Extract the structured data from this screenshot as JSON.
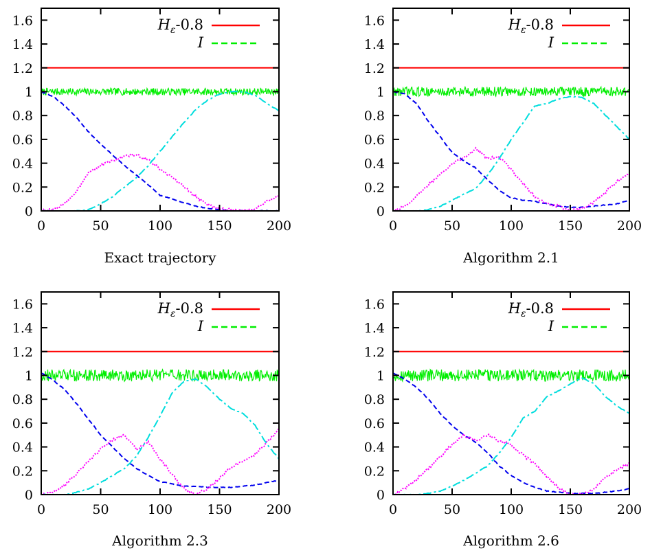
{
  "chart_data": [
    {
      "type": "line",
      "title": "Exact trajectory",
      "xlim": [
        0,
        200
      ],
      "ylim": [
        0,
        1.7
      ],
      "x_ticks": [
        0,
        50,
        100,
        150,
        200
      ],
      "y_ticks": [
        0,
        0.2,
        0.4,
        0.6,
        0.8,
        1,
        1.2,
        1.4,
        1.6
      ],
      "legend_position": "top-right",
      "series": [
        {
          "name": "Hε-0.8",
          "color": "#ff0000",
          "style": "solid",
          "x": [
            0,
            200
          ],
          "y": [
            1.2,
            1.2
          ]
        },
        {
          "name": "I",
          "color": "#00ee00",
          "style": "dashed-noisy",
          "amp": 0.03,
          "x": [
            0,
            200
          ],
          "y": [
            1.0,
            1.0
          ]
        },
        {
          "color": "#0000ee",
          "style": "dashed",
          "x": [
            0,
            10,
            20,
            30,
            40,
            50,
            60,
            70,
            80,
            90,
            100,
            110,
            120,
            130,
            140,
            150,
            160,
            170,
            180,
            190,
            200
          ],
          "y": [
            1.0,
            0.96,
            0.88,
            0.78,
            0.66,
            0.56,
            0.47,
            0.38,
            0.3,
            0.22,
            0.13,
            0.1,
            0.07,
            0.04,
            0.02,
            0.01,
            0.0,
            0.0,
            0.0,
            0.0,
            0.0
          ]
        },
        {
          "color": "#ff00ff",
          "style": "dotted",
          "x": [
            0,
            10,
            20,
            30,
            40,
            50,
            60,
            70,
            80,
            90,
            100,
            110,
            120,
            130,
            140,
            150,
            160,
            170,
            180,
            190,
            200
          ],
          "y": [
            0.0,
            0.01,
            0.06,
            0.17,
            0.33,
            0.38,
            0.42,
            0.46,
            0.47,
            0.43,
            0.35,
            0.28,
            0.2,
            0.12,
            0.05,
            0.02,
            0.01,
            0.0,
            0.02,
            0.08,
            0.13
          ]
        },
        {
          "color": "#00dddd",
          "style": "dashdot",
          "x": [
            0,
            10,
            20,
            30,
            40,
            50,
            60,
            70,
            80,
            90,
            100,
            110,
            120,
            130,
            140,
            150,
            160,
            170,
            180,
            190,
            200
          ],
          "y": [
            0.0,
            0.0,
            0.0,
            0.0,
            0.01,
            0.06,
            0.12,
            0.2,
            0.28,
            0.38,
            0.5,
            0.62,
            0.74,
            0.85,
            0.93,
            0.98,
            1.0,
            1.0,
            0.97,
            0.9,
            0.84
          ]
        }
      ]
    },
    {
      "type": "line",
      "title": "Algorithm 2.1",
      "xlim": [
        0,
        200
      ],
      "ylim": [
        0,
        1.7
      ],
      "x_ticks": [
        0,
        50,
        100,
        150,
        200
      ],
      "y_ticks": [
        0,
        0.2,
        0.4,
        0.6,
        0.8,
        1,
        1.2,
        1.4,
        1.6
      ],
      "legend_position": "top-right",
      "series": [
        {
          "name": "Hε-0.8",
          "color": "#ff0000",
          "style": "solid",
          "x": [
            0,
            200
          ],
          "y": [
            1.2,
            1.2
          ]
        },
        {
          "name": "I",
          "color": "#00ee00",
          "style": "dashed-noisy",
          "amp": 0.04,
          "x": [
            0,
            200
          ],
          "y": [
            1.0,
            1.0
          ]
        },
        {
          "color": "#0000ee",
          "style": "dashed",
          "x": [
            0,
            10,
            20,
            30,
            40,
            50,
            60,
            70,
            80,
            90,
            100,
            110,
            120,
            130,
            140,
            150,
            160,
            170,
            180,
            190,
            200
          ],
          "y": [
            1.0,
            0.98,
            0.9,
            0.75,
            0.62,
            0.49,
            0.42,
            0.36,
            0.26,
            0.17,
            0.11,
            0.09,
            0.08,
            0.06,
            0.04,
            0.03,
            0.03,
            0.04,
            0.05,
            0.06,
            0.09
          ]
        },
        {
          "color": "#ff00ff",
          "style": "dotted",
          "x": [
            0,
            10,
            20,
            30,
            40,
            50,
            60,
            70,
            80,
            90,
            100,
            110,
            120,
            130,
            140,
            150,
            160,
            170,
            180,
            190,
            200
          ],
          "y": [
            0.0,
            0.04,
            0.12,
            0.22,
            0.31,
            0.4,
            0.45,
            0.52,
            0.44,
            0.45,
            0.35,
            0.23,
            0.12,
            0.06,
            0.04,
            0.0,
            0.02,
            0.07,
            0.16,
            0.25,
            0.31
          ]
        },
        {
          "color": "#00dddd",
          "style": "dashdot",
          "x": [
            0,
            10,
            20,
            30,
            40,
            50,
            60,
            70,
            80,
            90,
            100,
            110,
            120,
            130,
            140,
            150,
            160,
            170,
            180,
            190,
            200
          ],
          "y": [
            0.0,
            0.0,
            0.0,
            0.01,
            0.04,
            0.09,
            0.14,
            0.19,
            0.3,
            0.44,
            0.6,
            0.74,
            0.88,
            0.9,
            0.94,
            0.96,
            0.95,
            0.9,
            0.8,
            0.7,
            0.6
          ]
        }
      ]
    },
    {
      "type": "line",
      "title": "Algorithm 2.3",
      "xlim": [
        0,
        200
      ],
      "ylim": [
        0,
        1.7
      ],
      "x_ticks": [
        0,
        50,
        100,
        150,
        200
      ],
      "y_ticks": [
        0,
        0.2,
        0.4,
        0.6,
        0.8,
        1,
        1.2,
        1.4,
        1.6
      ],
      "legend_position": "top-right",
      "series": [
        {
          "name": "Hε-0.8",
          "color": "#ff0000",
          "style": "solid",
          "x": [
            0,
            200
          ],
          "y": [
            1.2,
            1.2
          ]
        },
        {
          "name": "I",
          "color": "#00ee00",
          "style": "dashed-noisy",
          "amp": 0.05,
          "x": [
            0,
            200
          ],
          "y": [
            1.0,
            1.0
          ]
        },
        {
          "color": "#0000ee",
          "style": "dashed",
          "x": [
            0,
            10,
            20,
            30,
            40,
            50,
            60,
            70,
            80,
            90,
            100,
            110,
            120,
            130,
            140,
            150,
            160,
            170,
            180,
            190,
            200
          ],
          "y": [
            1.02,
            0.96,
            0.88,
            0.76,
            0.63,
            0.5,
            0.4,
            0.3,
            0.22,
            0.16,
            0.11,
            0.09,
            0.07,
            0.07,
            0.06,
            0.06,
            0.06,
            0.07,
            0.08,
            0.1,
            0.12
          ]
        },
        {
          "color": "#ff00ff",
          "style": "dotted",
          "x": [
            0,
            10,
            20,
            30,
            40,
            50,
            60,
            70,
            80,
            90,
            100,
            110,
            120,
            130,
            140,
            150,
            160,
            170,
            180,
            190,
            200
          ],
          "y": [
            0.0,
            0.02,
            0.08,
            0.18,
            0.28,
            0.38,
            0.46,
            0.5,
            0.38,
            0.44,
            0.3,
            0.17,
            0.05,
            0.0,
            0.05,
            0.14,
            0.23,
            0.28,
            0.34,
            0.44,
            0.55
          ]
        },
        {
          "color": "#00dddd",
          "style": "dashdot",
          "x": [
            0,
            10,
            20,
            30,
            40,
            50,
            60,
            70,
            80,
            90,
            100,
            110,
            120,
            130,
            140,
            150,
            160,
            170,
            180,
            190,
            200
          ],
          "y": [
            0.0,
            0.0,
            0.0,
            0.02,
            0.05,
            0.1,
            0.16,
            0.22,
            0.32,
            0.48,
            0.66,
            0.85,
            0.95,
            0.97,
            0.9,
            0.8,
            0.72,
            0.68,
            0.58,
            0.42,
            0.3
          ]
        }
      ]
    },
    {
      "type": "line",
      "title": "Algorithm 2.6",
      "xlim": [
        0,
        200
      ],
      "ylim": [
        0,
        1.7
      ],
      "x_ticks": [
        0,
        50,
        100,
        150,
        200
      ],
      "y_ticks": [
        0,
        0.2,
        0.4,
        0.6,
        0.8,
        1,
        1.2,
        1.4,
        1.6
      ],
      "legend_position": "top-right",
      "series": [
        {
          "name": "Hε-0.8",
          "color": "#ff0000",
          "style": "solid",
          "x": [
            0,
            200
          ],
          "y": [
            1.2,
            1.2
          ]
        },
        {
          "name": "I",
          "color": "#00ee00",
          "style": "dashed-noisy",
          "amp": 0.05,
          "x": [
            0,
            200
          ],
          "y": [
            1.0,
            1.0
          ]
        },
        {
          "color": "#0000ee",
          "style": "dashed",
          "x": [
            0,
            10,
            20,
            30,
            40,
            50,
            60,
            70,
            80,
            90,
            100,
            110,
            120,
            130,
            140,
            150,
            160,
            170,
            180,
            190,
            200
          ],
          "y": [
            1.02,
            0.97,
            0.9,
            0.8,
            0.68,
            0.58,
            0.5,
            0.44,
            0.35,
            0.24,
            0.16,
            0.1,
            0.06,
            0.03,
            0.02,
            0.01,
            0.01,
            0.01,
            0.02,
            0.03,
            0.05
          ]
        },
        {
          "color": "#ff00ff",
          "style": "dotted",
          "x": [
            0,
            10,
            20,
            30,
            40,
            50,
            60,
            70,
            80,
            90,
            100,
            110,
            120,
            130,
            140,
            150,
            160,
            170,
            180,
            190,
            200
          ],
          "y": [
            0.0,
            0.05,
            0.13,
            0.22,
            0.32,
            0.42,
            0.5,
            0.45,
            0.5,
            0.45,
            0.42,
            0.33,
            0.26,
            0.15,
            0.06,
            0.0,
            0.0,
            0.04,
            0.15,
            0.21,
            0.26
          ]
        },
        {
          "color": "#00dddd",
          "style": "dashdot",
          "x": [
            0,
            10,
            20,
            30,
            40,
            50,
            60,
            70,
            80,
            90,
            100,
            110,
            120,
            130,
            140,
            150,
            160,
            170,
            180,
            190,
            200
          ],
          "y": [
            0.0,
            0.0,
            0.0,
            0.01,
            0.03,
            0.07,
            0.12,
            0.18,
            0.24,
            0.35,
            0.48,
            0.64,
            0.7,
            0.82,
            0.87,
            0.93,
            0.98,
            0.93,
            0.82,
            0.74,
            0.68
          ]
        }
      ]
    }
  ]
}
